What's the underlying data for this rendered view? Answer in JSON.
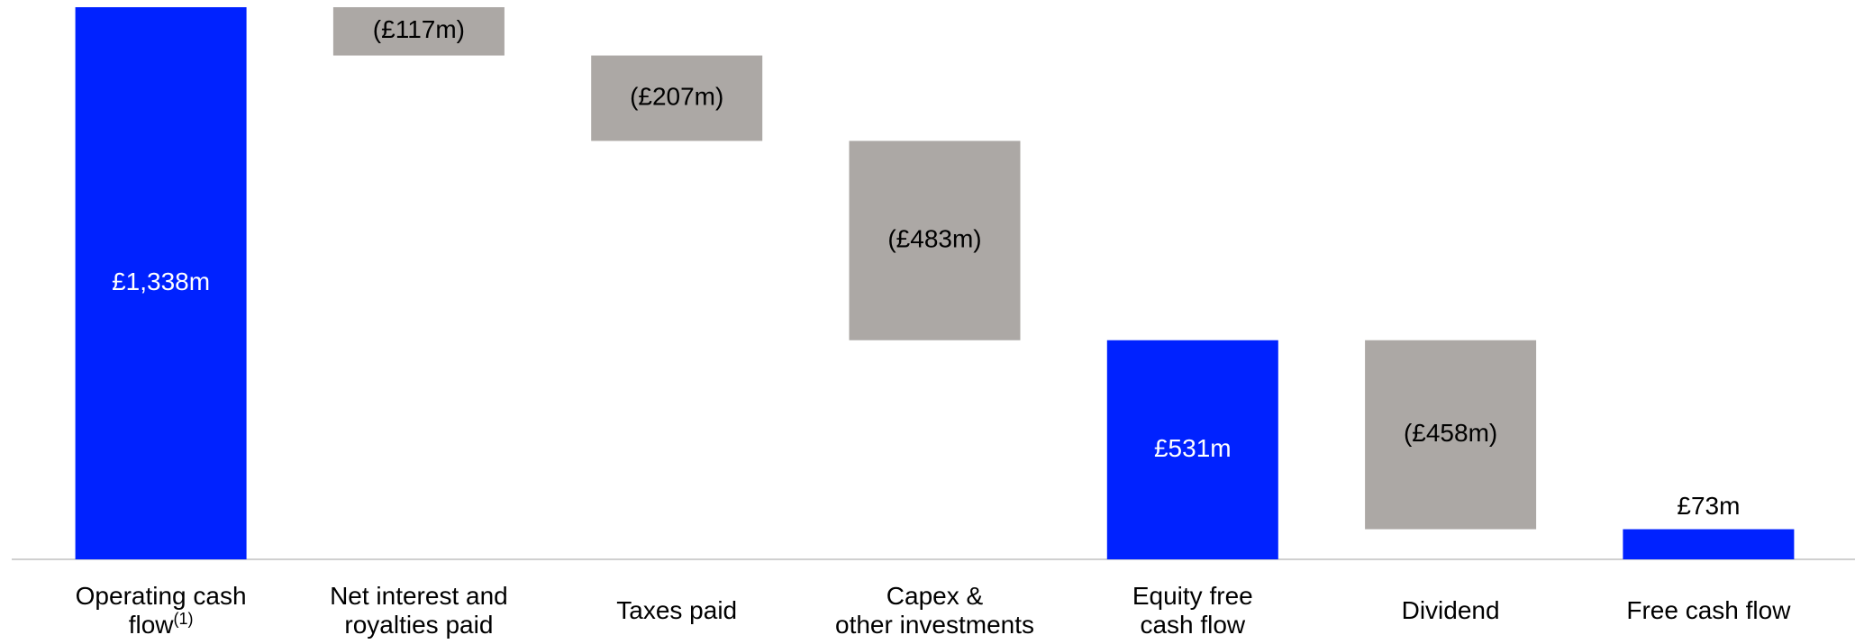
{
  "chart_data": {
    "type": "waterfall",
    "categories": [
      [
        "Operating cash",
        "flow"
      ],
      [
        "Net interest and",
        "royalties paid"
      ],
      [
        "Taxes paid"
      ],
      [
        "Capex &",
        "other investments"
      ],
      [
        "Equity free",
        "cash flow"
      ],
      [
        "Dividend"
      ],
      [
        "Free cash flow"
      ]
    ],
    "category_footnote": "(1)",
    "values": [
      1338,
      -117,
      -207,
      -483,
      531,
      -458,
      73
    ],
    "value_labels": [
      "£1,338m",
      "(£117m)",
      "(£207m)",
      "(£483m)",
      "£531m",
      "(£458m)",
      "£73m"
    ],
    "is_total": [
      true,
      false,
      false,
      false,
      true,
      false,
      true
    ],
    "total_color": "#0022ff",
    "change_color": "#aca8a5"
  }
}
